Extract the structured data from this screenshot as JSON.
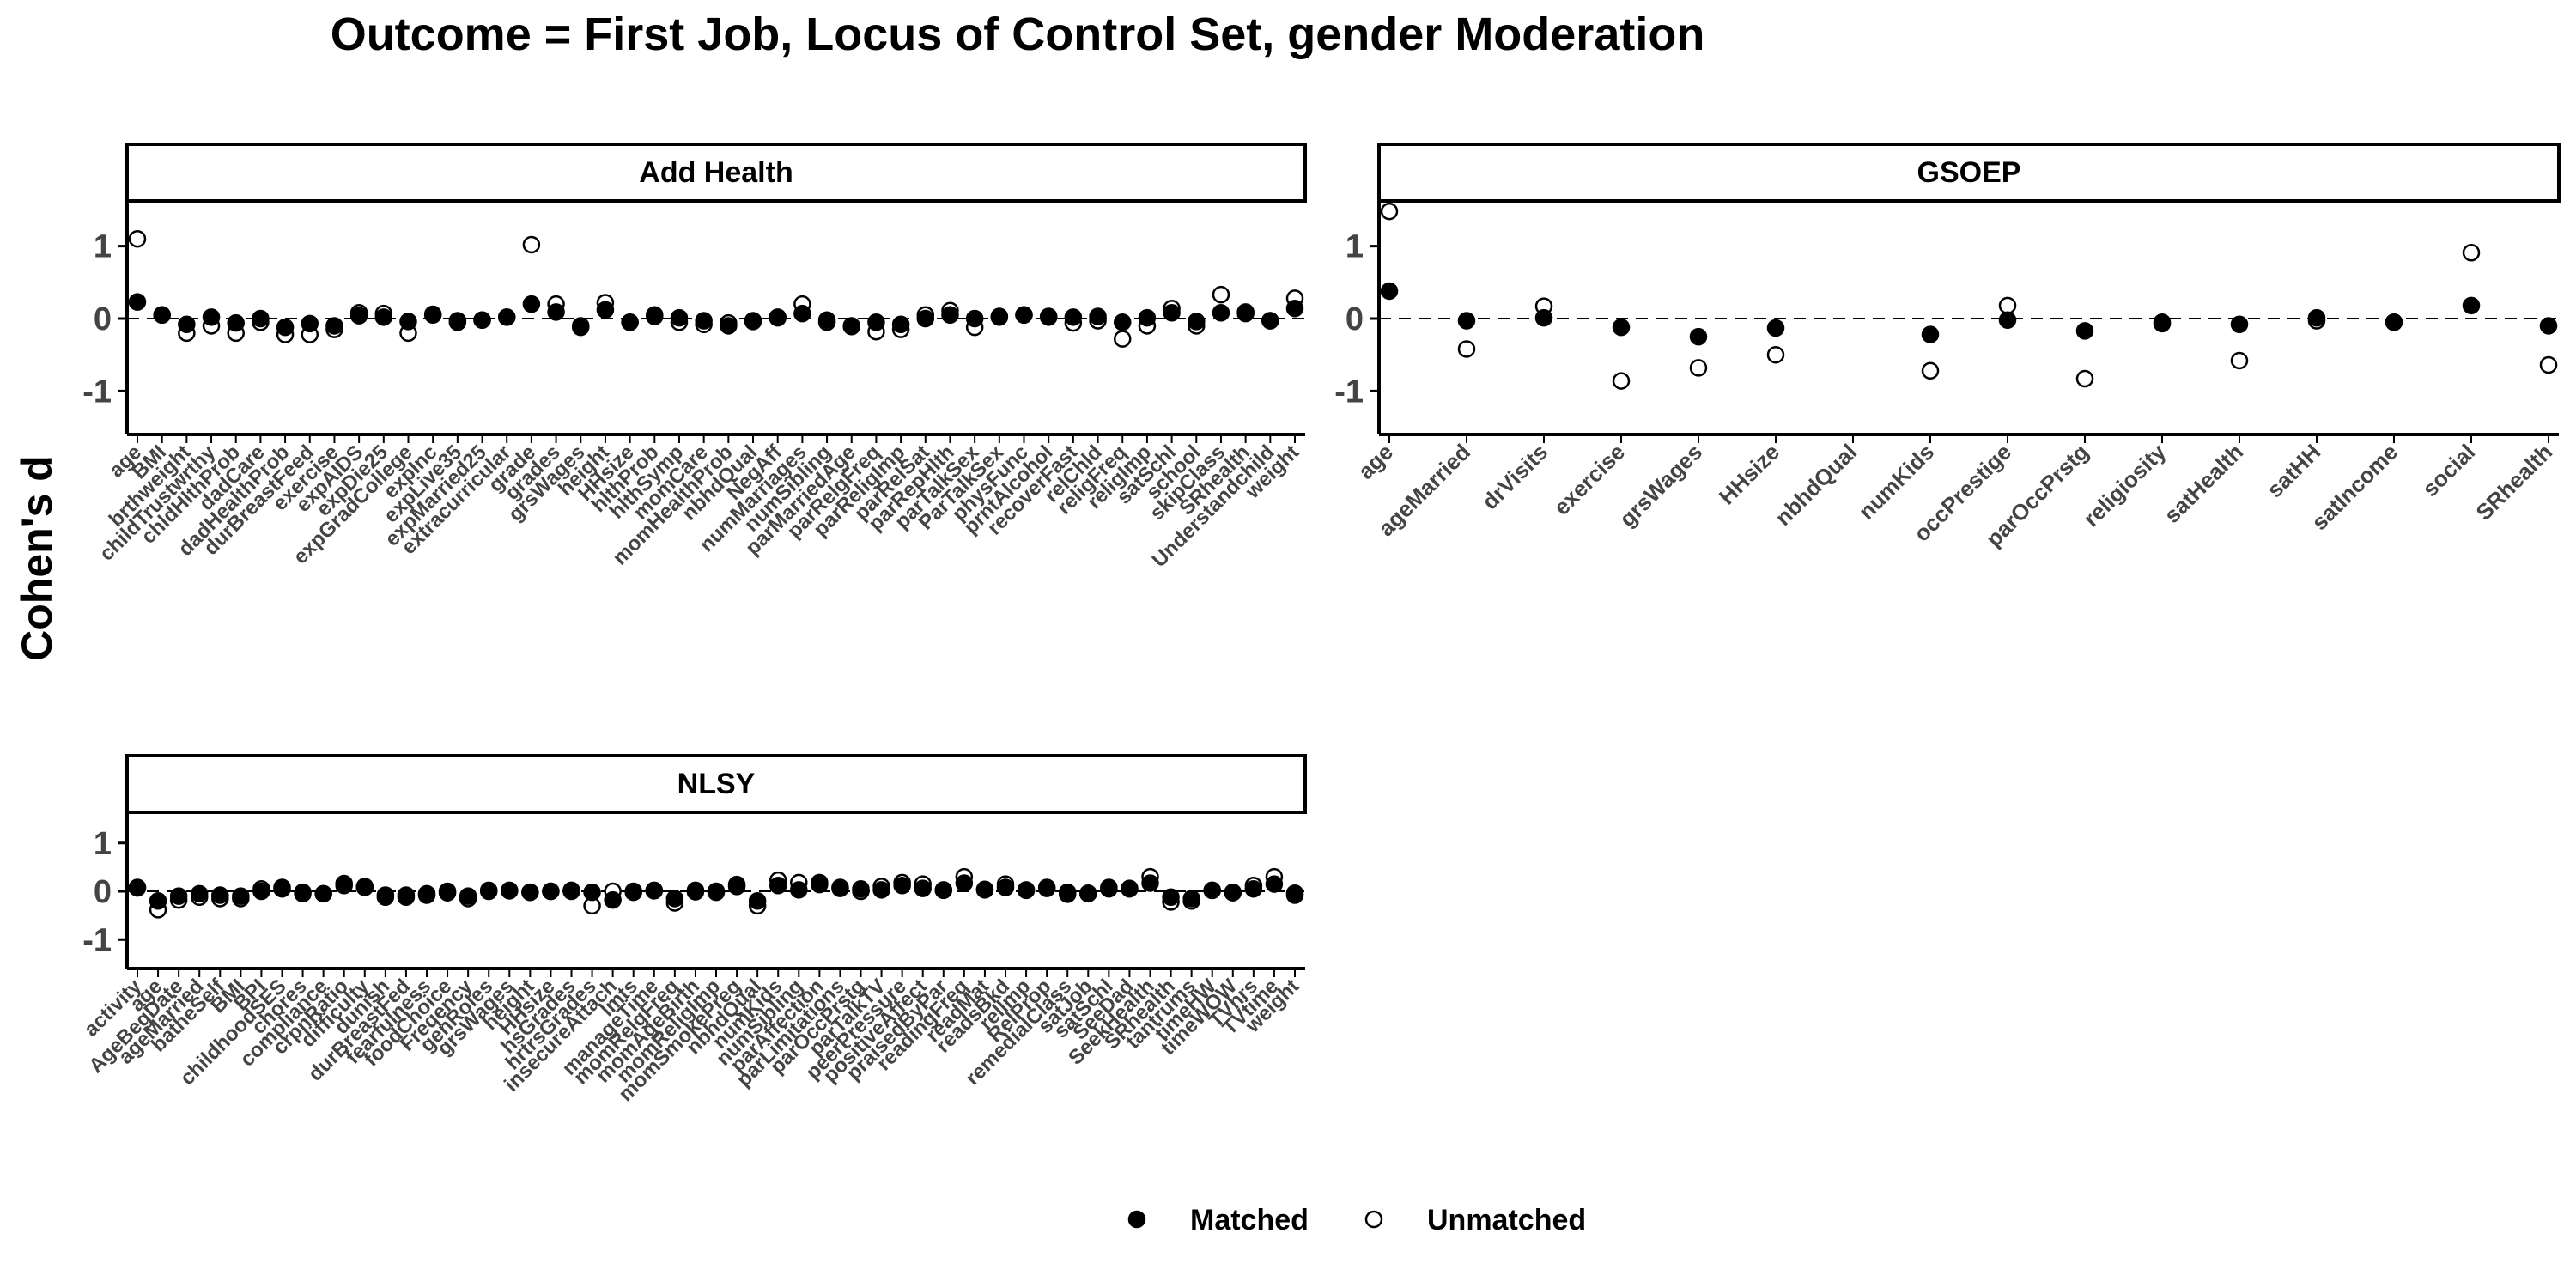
{
  "title": "Outcome = First Job, Locus of Control Set, gender Moderation",
  "ylabel": "Cohen's d",
  "legend": [
    {
      "name": "Matched",
      "marker": "filled-circle"
    },
    {
      "name": "Unmatched",
      "marker": "open-circle"
    }
  ],
  "chart_data": [
    {
      "type": "scatter",
      "panel": "Add Health",
      "ylim": [
        -1.6,
        1.6
      ],
      "yticks": [
        -1,
        0,
        1
      ],
      "reference_line": 0,
      "categories": [
        "age",
        "BMI",
        "brthweight",
        "childTrustwrthy",
        "chldHlthProb",
        "dadCare",
        "dadHealthProb",
        "durBreastFeed",
        "exercise",
        "expAIDS",
        "expDie25",
        "expGradCollege",
        "expInc",
        "expLive35",
        "expMarried25",
        "extracurricular",
        "grade",
        "grades",
        "grsWages",
        "height",
        "HHsize",
        "hlthProb",
        "hlthSymp",
        "momCare",
        "momHealthProb",
        "nbhdQual",
        "NegAff",
        "numMarriages",
        "numSibling",
        "parMarriedAge",
        "parRelgFreq",
        "parReligImp",
        "parRelSat",
        "parRepHlth",
        "parTalkSex",
        "ParTalkSex",
        "physFunc",
        "prntAlcohol",
        "recoverFast",
        "relChld",
        "religFreq",
        "religImp",
        "satSchl",
        "school",
        "skipClass",
        "SRhealth",
        "Understandchild",
        "weight"
      ],
      "series": [
        {
          "name": "Matched",
          "values": [
            0.23,
            0.05,
            -0.08,
            0.02,
            -0.06,
            0.0,
            -0.12,
            -0.07,
            -0.1,
            0.04,
            0.02,
            -0.04,
            0.06,
            -0.03,
            -0.02,
            0.02,
            0.2,
            0.09,
            -0.12,
            0.12,
            -0.05,
            0.03,
            0.01,
            -0.03,
            -0.1,
            -0.04,
            0.01,
            0.07,
            -0.02,
            -0.11,
            -0.05,
            -0.08,
            0.0,
            0.05,
            0.0,
            0.02,
            0.05,
            0.02,
            0.02,
            0.03,
            -0.05,
            0.01,
            0.08,
            -0.04,
            0.08,
            0.09,
            -0.03,
            0.14
          ]
        },
        {
          "name": "Unmatched",
          "values": [
            1.1,
            0.05,
            -0.2,
            -0.1,
            -0.2,
            -0.05,
            -0.22,
            -0.22,
            -0.15,
            0.08,
            0.07,
            -0.2,
            0.05,
            -0.05,
            -0.02,
            0.02,
            1.02,
            0.2,
            -0.1,
            0.22,
            -0.05,
            0.05,
            -0.05,
            -0.08,
            -0.06,
            -0.03,
            0.02,
            0.2,
            -0.05,
            -0.1,
            -0.18,
            -0.15,
            0.05,
            0.11,
            -0.12,
            0.03,
            0.05,
            0.03,
            -0.06,
            -0.03,
            -0.28,
            -0.1,
            0.14,
            -0.1,
            0.33,
            0.07,
            -0.03,
            0.28
          ]
        }
      ]
    },
    {
      "type": "scatter",
      "panel": "GSOEP",
      "ylim": [
        -1.6,
        1.6
      ],
      "yticks": [
        -1,
        0,
        1
      ],
      "reference_line": 0,
      "categories": [
        "age",
        "ageMarried",
        "drVisits",
        "exercise",
        "grsWages",
        "HHsize",
        "nbhdQual",
        "numKids",
        "occPrestige",
        "parOccPrstg",
        "religiosity",
        "satHealth",
        "satHH",
        "satIncome",
        "social",
        "SRhealth"
      ],
      "series": [
        {
          "name": "Matched",
          "values": [
            0.38,
            -0.03,
            0.01,
            -0.12,
            -0.25,
            -0.13,
            null,
            -0.22,
            -0.02,
            -0.17,
            -0.07,
            -0.08,
            0.01,
            -0.05,
            0.18,
            -0.1
          ]
        },
        {
          "name": "Unmatched",
          "values": [
            1.48,
            -0.42,
            0.17,
            -0.86,
            -0.68,
            -0.5,
            null,
            -0.72,
            0.18,
            -0.83,
            -0.05,
            -0.58,
            -0.03,
            -0.05,
            0.91,
            -0.64
          ]
        }
      ]
    },
    {
      "type": "scatter",
      "panel": "NLSY",
      "ylim": [
        -1.6,
        1.6
      ],
      "yticks": [
        -1,
        0,
        1
      ],
      "reference_line": 0,
      "categories": [
        "activity",
        "age",
        "AgeBegDate",
        "ageMarried",
        "batheSelf",
        "BMI",
        "BPI",
        "childhoodSES",
        "chores",
        "compliance",
        "crpnRatio",
        "difficulty",
        "dunish",
        "durBreastFed",
        "fearfulness",
        "foodChoice",
        "Freqency",
        "genRoles",
        "grsWages",
        "height",
        "HHsize",
        "hsGrades",
        "hrtrsGrades",
        "insecureAttach",
        "lmts",
        "manageTime",
        "momRelgFreq",
        "momAgeBirth",
        "momReligImp",
        "momSmokePreg",
        "nbhdQual",
        "numKids",
        "numSibling",
        "parAffection",
        "parLimitations",
        "parOccPrstg",
        "parTalkTV",
        "peerPressure",
        "positiveAffect",
        "praisedByPar",
        "readingFreq",
        "readMat",
        "readsBkd",
        "rellmp",
        "RelProp",
        "remedialClass",
        "satJob",
        "satSchl",
        "SeeDad",
        "SeekHealth",
        "SRhealth",
        "tantrums",
        "timeHW",
        "timeWOW",
        "TVhrs",
        "TVtime",
        "weight"
      ],
      "series": [
        {
          "name": "Matched",
          "values": [
            0.07,
            -0.2,
            -0.1,
            -0.05,
            -0.08,
            -0.1,
            0.0,
            0.05,
            -0.02,
            -0.05,
            0.12,
            0.08,
            -0.08,
            -0.08,
            -0.05,
            0.0,
            -0.1,
            0.02,
            0.01,
            -0.02,
            0.0,
            0.0,
            -0.02,
            -0.18,
            -0.02,
            0.01,
            -0.15,
            -0.01,
            -0.02,
            0.1,
            -0.2,
            0.12,
            0.03,
            0.14,
            0.08,
            0.05,
            0.03,
            0.12,
            0.06,
            0.03,
            0.17,
            0.03,
            0.08,
            0.03,
            0.08,
            -0.02,
            -0.05,
            0.05,
            0.05,
            0.17,
            -0.12,
            -0.15,
            0.02,
            -0.03,
            0.05,
            0.15,
            -0.04
          ]
        },
        {
          "name": "Unmatched",
          "values": [
            0.08,
            -0.38,
            -0.18,
            -0.12,
            -0.15,
            -0.15,
            0.05,
            0.08,
            -0.05,
            -0.05,
            0.16,
            0.1,
            -0.12,
            -0.12,
            -0.08,
            -0.03,
            -0.15,
            0.0,
            0.02,
            -0.02,
            0.0,
            0.02,
            -0.3,
            0.0,
            0.0,
            0.02,
            -0.24,
            0.02,
            0.0,
            0.14,
            -0.3,
            0.23,
            0.18,
            0.18,
            0.06,
            0.0,
            0.1,
            0.18,
            0.15,
            0.02,
            0.3,
            0.04,
            0.15,
            0.02,
            0.06,
            -0.06,
            -0.04,
            0.08,
            0.06,
            0.3,
            -0.22,
            -0.2,
            0.02,
            -0.02,
            0.12,
            0.3,
            -0.08
          ]
        }
      ]
    }
  ]
}
